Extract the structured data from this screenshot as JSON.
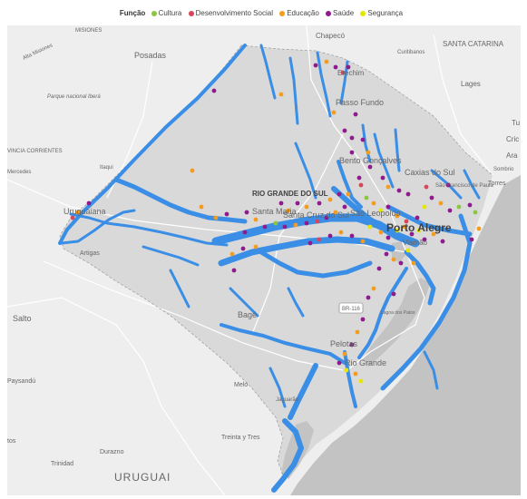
{
  "legend": {
    "title": "Função",
    "items": [
      {
        "label": "Cultura",
        "color": "#8cc63f"
      },
      {
        "label": "Desenvolvimento Social",
        "color": "#d8465a"
      },
      {
        "label": "Educação",
        "color": "#f39c1f"
      },
      {
        "label": "Saúde",
        "color": "#8e1a8e"
      },
      {
        "label": "Segurança",
        "color": "#e6e600"
      }
    ]
  },
  "map": {
    "flood_color": "#3a8ee6",
    "labels": {
      "misiones": "MISIONES",
      "chapeco": "Chapecó",
      "curitibanos": "Curitibanos",
      "santa_catarina": "SANTA CATARINA",
      "alta_misiones": "Alta Misiones",
      "posadas": "Posadas",
      "erechim": "Erechim",
      "lages": "Lages",
      "parque": "Parque nacional Iberá",
      "passo_fundo": "Passo Fundo",
      "corrientes": "VINCIA CORRIENTES",
      "bento": "Bento Gonçalves",
      "caxias": "Caxias do Sul",
      "tu": "Tu",
      "cric": "Cric",
      "ara": "Ara",
      "sombrio": "Sombrio",
      "mercedes": "Mercedes",
      "itaqui": "Itaqui",
      "rio_grande_do_sul": "RIO GRANDE DO SUL",
      "sao_francisco": "São Francisco de Paula",
      "torres": "Torres",
      "uruguaiana": "Uruguaiana",
      "santa_maria": "Santa Maria",
      "santa_cruz": "Santa Cruz do Sul",
      "sao_leopoldo": "São Leopoldo",
      "porto_alegre": "Porto Alegre",
      "viamao": "Viamão",
      "artigas": "Artigas",
      "br116": "BR-116",
      "lagoa": "Lagoa dos Patos",
      "salto": "Salto",
      "bage": "Bagé",
      "pelotas": "Pelotas",
      "rio_grande": "Rio Grande",
      "paysandu": "Paysandú",
      "melo": "Melo",
      "jaguarao": "Jaguarão",
      "tos": "tos",
      "treinta": "Treinta y Tres",
      "durazno": "Durazno",
      "trinidad": "Trinidad",
      "uruguai": "URUGUAI"
    }
  }
}
